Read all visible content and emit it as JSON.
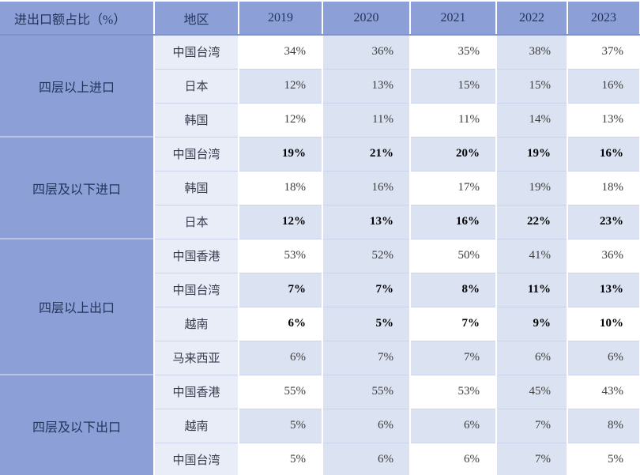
{
  "chart_data": {
    "type": "table",
    "title": "进出口额占比（%）",
    "region_label": "地区",
    "years": [
      "2019",
      "2020",
      "2021",
      "2022",
      "2023"
    ],
    "groups": [
      {
        "label": "四层以上进口",
        "rows": [
          {
            "region": "中国台湾",
            "bold": false,
            "values": [
              "34%",
              "36%",
              "35%",
              "38%",
              "37%"
            ]
          },
          {
            "region": "日本",
            "bold": false,
            "values": [
              "12%",
              "13%",
              "15%",
              "15%",
              "16%"
            ]
          },
          {
            "region": "韩国",
            "bold": false,
            "values": [
              "12%",
              "11%",
              "11%",
              "14%",
              "13%"
            ]
          }
        ]
      },
      {
        "label": "四层及以下进口",
        "rows": [
          {
            "region": "中国台湾",
            "bold": true,
            "values": [
              "19%",
              "21%",
              "20%",
              "19%",
              "16%"
            ]
          },
          {
            "region": "韩国",
            "bold": false,
            "values": [
              "18%",
              "16%",
              "17%",
              "19%",
              "18%"
            ]
          },
          {
            "region": "日本",
            "bold": true,
            "values": [
              "12%",
              "13%",
              "16%",
              "22%",
              "23%"
            ]
          }
        ]
      },
      {
        "label": "四层以上出口",
        "rows": [
          {
            "region": "中国香港",
            "bold": false,
            "values": [
              "53%",
              "52%",
              "50%",
              "41%",
              "36%"
            ]
          },
          {
            "region": "中国台湾",
            "bold": true,
            "values": [
              "7%",
              "7%",
              "8%",
              "11%",
              "13%"
            ]
          },
          {
            "region": "越南",
            "bold": true,
            "values": [
              "6%",
              "5%",
              "7%",
              "9%",
              "10%"
            ]
          },
          {
            "region": "马来西亚",
            "bold": false,
            "values": [
              "6%",
              "7%",
              "7%",
              "6%",
              "6%"
            ]
          }
        ]
      },
      {
        "label": "四层及以下出口",
        "rows": [
          {
            "region": "中国香港",
            "bold": false,
            "values": [
              "55%",
              "55%",
              "53%",
              "45%",
              "43%"
            ]
          },
          {
            "region": "越南",
            "bold": false,
            "values": [
              "5%",
              "6%",
              "6%",
              "7%",
              "8%"
            ]
          },
          {
            "region": "中国台湾",
            "bold": false,
            "values": [
              "5%",
              "6%",
              "6%",
              "7%",
              "5%"
            ]
          }
        ]
      }
    ],
    "layout_hints": {
      "banded_columns": [
        "2020",
        "2022"
      ],
      "banded_rows": "every second data row fully shaded"
    }
  },
  "colors": {
    "header_bg": "#8c9fd6",
    "group_bg": "#8c9fd6",
    "region_bg": "#e9edf8",
    "band_bg": "#dbe2f1",
    "white_bg": "#ffffff",
    "header_text": "#24355c",
    "value_text": "#3d3d3d",
    "bold_value_text": "#000000",
    "row_line": "#cbd4ea",
    "group_line": "#b9c5e3",
    "header_line": "#8093c4"
  }
}
